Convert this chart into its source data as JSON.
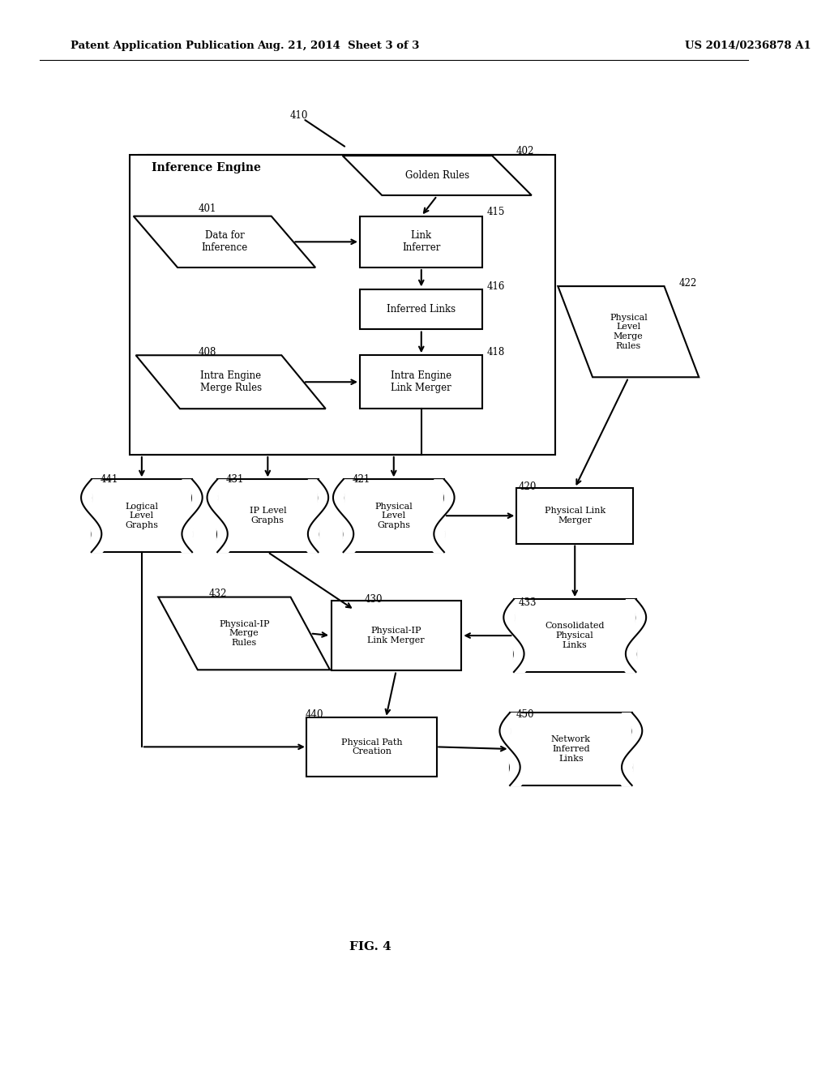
{
  "header_left": "Patent Application Publication",
  "header_mid": "Aug. 21, 2014  Sheet 3 of 3",
  "header_right": "US 2014/0236878 A1",
  "fig_label": "FIG. 4",
  "bg_color": "#ffffff"
}
